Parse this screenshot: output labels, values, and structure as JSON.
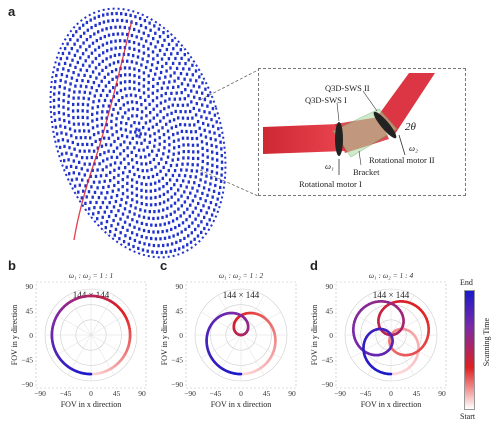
{
  "panels": {
    "a": "a",
    "b": "b",
    "c": "c",
    "d": "d"
  },
  "inset": {
    "q3d_sws_2": "Q3D-SWS II",
    "q3d_sws_1": "Q3D-SWS I",
    "angle": "2θ",
    "bracket": "Bracket",
    "rot_motor_1": "Rotational motor I",
    "rot_motor_2": "Rotational motor II",
    "omega_1": "ω₁",
    "omega_2": "ω₂"
  },
  "plots": [
    {
      "ratio": "ω₁ : ω₂ = 1 : 1",
      "resolution": "144 × 144"
    },
    {
      "ratio": "ω₁ : ω₂ = 1 : 2",
      "resolution": "144 × 144"
    },
    {
      "ratio": "ω₁ : ω₂ = 1 : 4",
      "resolution": "144 × 144"
    }
  ],
  "axes": {
    "xlabel": "FOV in x direction",
    "ylabel": "FOV in y direction",
    "xticks": [
      "−90",
      "−45",
      "0",
      "45",
      "90"
    ],
    "yticks": [
      "90",
      "45",
      "0",
      "−45",
      "−90"
    ]
  },
  "colorbar": {
    "title": "Scanning Time",
    "top": "End",
    "bottom": "Start",
    "color_end": "#1a1acc",
    "color_start": "#ffffff",
    "color_mid": "#e02020"
  },
  "colors": {
    "points": "#2233cc",
    "beam": "#dd1f2f",
    "trace": "#e03030"
  }
}
